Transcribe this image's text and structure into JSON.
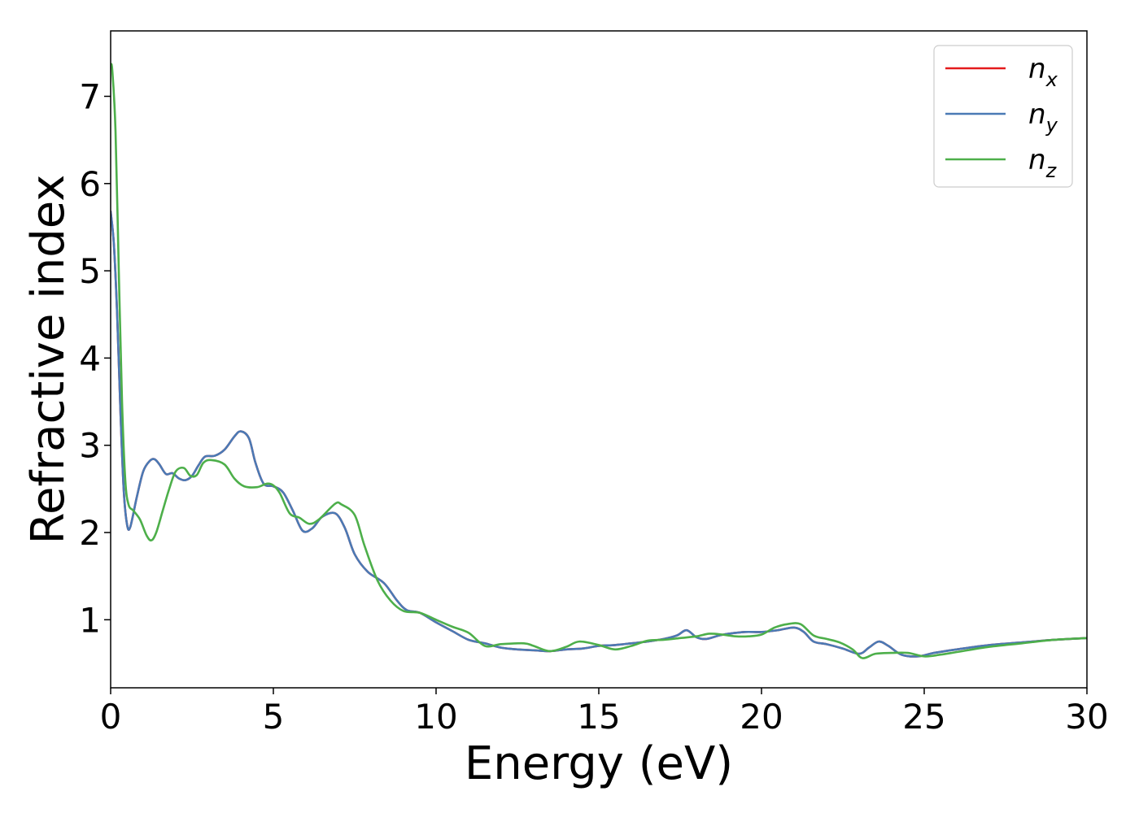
{
  "chart_data": {
    "type": "line",
    "title": "",
    "xlabel": "Energy (eV)",
    "ylabel": "Refractive index",
    "xlim": [
      0,
      30
    ],
    "ylim": [
      0.22,
      7.75
    ],
    "xticks": [
      0,
      5,
      10,
      15,
      20,
      25,
      30
    ],
    "yticks": [
      1,
      2,
      3,
      4,
      5,
      6,
      7
    ],
    "grid": false,
    "legend_position": "top-right",
    "series": [
      {
        "name": "n",
        "subscript": "x",
        "color": "#e41a1c",
        "x": [
          0,
          0.1,
          0.2,
          0.3,
          0.4,
          0.5,
          0.6,
          0.8,
          1.0,
          1.2,
          1.35,
          1.5,
          1.7,
          1.9,
          2.1,
          2.3,
          2.5,
          2.7,
          2.9,
          3.2,
          3.5,
          3.8,
          4.0,
          4.25,
          4.45,
          4.7,
          5.0,
          5.3,
          5.6,
          5.9,
          6.2,
          6.5,
          6.9,
          7.2,
          7.5,
          7.9,
          8.4,
          8.8,
          9.1,
          9.5,
          10.0,
          10.5,
          11.0,
          11.5,
          12.0,
          12.5,
          13.0,
          13.5,
          14.0,
          14.5,
          15.0,
          15.5,
          16.0,
          16.5,
          17.0,
          17.4,
          17.7,
          18.0,
          18.3,
          18.7,
          19.0,
          19.5,
          20.0,
          20.5,
          21.0,
          21.3,
          21.6,
          22.0,
          22.5,
          23.0,
          23.3,
          23.6,
          23.9,
          24.3,
          24.8,
          25.3,
          26.0,
          27.0,
          28.0,
          29.0,
          30.0
        ],
        "y": [
          5.68,
          5.3,
          4.5,
          3.4,
          2.5,
          2.1,
          2.06,
          2.4,
          2.7,
          2.82,
          2.84,
          2.78,
          2.67,
          2.68,
          2.62,
          2.6,
          2.65,
          2.77,
          2.87,
          2.88,
          2.95,
          3.1,
          3.16,
          3.08,
          2.8,
          2.56,
          2.53,
          2.46,
          2.25,
          2.02,
          2.05,
          2.18,
          2.22,
          2.05,
          1.75,
          1.55,
          1.42,
          1.22,
          1.11,
          1.08,
          0.97,
          0.87,
          0.77,
          0.73,
          0.68,
          0.66,
          0.65,
          0.64,
          0.66,
          0.67,
          0.7,
          0.71,
          0.73,
          0.75,
          0.78,
          0.82,
          0.88,
          0.8,
          0.78,
          0.82,
          0.84,
          0.86,
          0.86,
          0.88,
          0.91,
          0.86,
          0.75,
          0.72,
          0.67,
          0.61,
          0.68,
          0.75,
          0.7,
          0.6,
          0.58,
          0.62,
          0.66,
          0.71,
          0.74,
          0.77,
          0.79
        ]
      },
      {
        "name": "n",
        "subscript": "y",
        "color": "#4a7ab5",
        "x": [
          0,
          0.1,
          0.2,
          0.3,
          0.4,
          0.5,
          0.6,
          0.8,
          1.0,
          1.2,
          1.35,
          1.5,
          1.7,
          1.9,
          2.1,
          2.3,
          2.5,
          2.7,
          2.9,
          3.2,
          3.5,
          3.8,
          4.0,
          4.25,
          4.45,
          4.7,
          5.0,
          5.3,
          5.6,
          5.9,
          6.2,
          6.5,
          6.9,
          7.2,
          7.5,
          7.9,
          8.4,
          8.8,
          9.1,
          9.5,
          10.0,
          10.5,
          11.0,
          11.5,
          12.0,
          12.5,
          13.0,
          13.5,
          14.0,
          14.5,
          15.0,
          15.5,
          16.0,
          16.5,
          17.0,
          17.4,
          17.7,
          18.0,
          18.3,
          18.7,
          19.0,
          19.5,
          20.0,
          20.5,
          21.0,
          21.3,
          21.6,
          22.0,
          22.5,
          23.0,
          23.3,
          23.6,
          23.9,
          24.3,
          24.8,
          25.3,
          26.0,
          27.0,
          28.0,
          29.0,
          30.0
        ],
        "y": [
          5.68,
          5.3,
          4.5,
          3.4,
          2.5,
          2.1,
          2.06,
          2.4,
          2.7,
          2.82,
          2.84,
          2.78,
          2.67,
          2.68,
          2.62,
          2.6,
          2.65,
          2.77,
          2.87,
          2.88,
          2.95,
          3.1,
          3.16,
          3.08,
          2.8,
          2.56,
          2.53,
          2.46,
          2.25,
          2.02,
          2.05,
          2.18,
          2.22,
          2.05,
          1.75,
          1.55,
          1.42,
          1.22,
          1.11,
          1.08,
          0.97,
          0.87,
          0.77,
          0.73,
          0.68,
          0.66,
          0.65,
          0.64,
          0.66,
          0.67,
          0.7,
          0.71,
          0.73,
          0.75,
          0.78,
          0.82,
          0.88,
          0.8,
          0.78,
          0.82,
          0.84,
          0.86,
          0.86,
          0.88,
          0.91,
          0.86,
          0.75,
          0.72,
          0.67,
          0.61,
          0.68,
          0.75,
          0.7,
          0.6,
          0.58,
          0.62,
          0.66,
          0.71,
          0.74,
          0.77,
          0.79
        ]
      },
      {
        "name": "n",
        "subscript": "z",
        "color": "#4daf4a",
        "x": [
          0,
          0.05,
          0.15,
          0.25,
          0.35,
          0.45,
          0.55,
          0.7,
          0.9,
          1.1,
          1.25,
          1.4,
          1.6,
          1.8,
          2.0,
          2.25,
          2.45,
          2.65,
          2.85,
          3.1,
          3.5,
          3.8,
          4.1,
          4.5,
          4.8,
          5.0,
          5.2,
          5.5,
          5.8,
          6.1,
          6.4,
          6.9,
          7.1,
          7.5,
          7.8,
          8.2,
          8.6,
          9.0,
          9.5,
          10.0,
          10.5,
          11.0,
          11.5,
          12.0,
          12.7,
          13.0,
          13.5,
          14.0,
          14.4,
          15.0,
          15.5,
          16.0,
          16.5,
          17.0,
          17.5,
          18.0,
          18.4,
          18.8,
          19.2,
          19.6,
          20.0,
          20.4,
          20.8,
          21.2,
          21.6,
          22.0,
          22.4,
          22.8,
          23.1,
          23.5,
          24.0,
          24.5,
          25.0,
          25.5,
          26.0,
          27.0,
          28.0,
          29.0,
          30.0
        ],
        "y": [
          7.35,
          7.3,
          6.6,
          5.0,
          3.5,
          2.6,
          2.32,
          2.25,
          2.15,
          1.97,
          1.91,
          2.0,
          2.25,
          2.5,
          2.7,
          2.74,
          2.65,
          2.66,
          2.8,
          2.83,
          2.78,
          2.62,
          2.53,
          2.52,
          2.56,
          2.54,
          2.45,
          2.22,
          2.17,
          2.1,
          2.15,
          2.33,
          2.32,
          2.2,
          1.85,
          1.45,
          1.22,
          1.1,
          1.08,
          1.0,
          0.92,
          0.85,
          0.7,
          0.72,
          0.73,
          0.7,
          0.64,
          0.69,
          0.75,
          0.71,
          0.66,
          0.7,
          0.76,
          0.77,
          0.79,
          0.81,
          0.84,
          0.83,
          0.81,
          0.81,
          0.83,
          0.91,
          0.95,
          0.95,
          0.82,
          0.78,
          0.74,
          0.66,
          0.56,
          0.61,
          0.62,
          0.62,
          0.58,
          0.6,
          0.63,
          0.69,
          0.73,
          0.77,
          0.79
        ]
      }
    ]
  }
}
